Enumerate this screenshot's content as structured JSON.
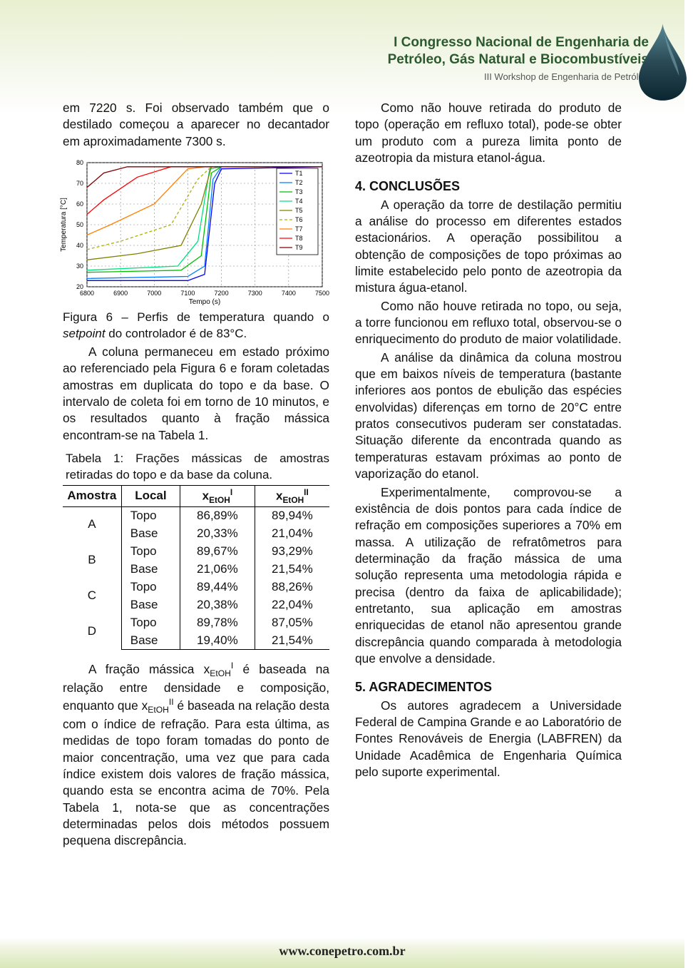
{
  "header": {
    "title_line1": "I Congresso Nacional de Engenharia de",
    "title_line2": "Petróleo, Gás Natural e Biocombustíveis",
    "subtitle": "III Workshop de Engenharia de Petróleo"
  },
  "left": {
    "p1": "em 7220 s. Foi observado também que o destilado começou a aparecer no decantador em aproximadamente 7300 s.",
    "fig_caption_a": "Figura 6 – Perfis de temperatura quando o ",
    "fig_caption_b": "setpoint",
    "fig_caption_c": " do controlador é de 83°C.",
    "p2": "A coluna permaneceu em estado próximo ao referenciado pela Figura 6 e foram coletadas amostras em duplicata do topo e da base. O intervalo de coleta foi em torno de 10 minutos, e os resultados quanto à fração mássica encontram-se na Tabela 1.",
    "table_title": "Tabela 1: Frações mássicas de amostras retiradas do topo e da base da coluna.",
    "p3a": "A fração mássica x",
    "p3b": " é baseada na relação entre densidade e composição, enquanto que x",
    "p3c": " é baseada na relação desta com o índice de refração. Para esta última, as medidas de topo foram tomadas do ponto de maior concentração, uma vez que para cada índice existem dois valores de fração mássica, quando esta se encontra acima de 70%. Pela Tabela 1, nota-se que as concentrações determinadas pelos dois métodos possuem pequena discrepância."
  },
  "right": {
    "p1": "Como não houve retirada do produto de topo (operação em refluxo total), pode-se obter um produto com a pureza limita ponto de azeotropia da mistura etanol-água.",
    "h1": "4. CONCLUSÕES",
    "p2": "A operação da torre de destilação permitiu a análise do processo em diferentes estados estacionários. A operação possibilitou a obtenção de composições de topo próximas ao limite estabelecido pelo ponto de azeotropia da mistura água-etanol.",
    "p3": "Como não houve retirada no topo, ou seja, a torre funcionou em refluxo total, observou-se o enriquecimento do produto de maior volatilidade.",
    "p4": "A análise da dinâmica da coluna mostrou que em baixos níveis de temperatura (bastante inferiores aos pontos de ebulição das espécies envolvidas) diferenças em torno de 20°C entre pratos consecutivos puderam ser constatadas. Situação diferente da encontrada quando as temperaturas estavam próximas ao ponto de vaporização do etanol.",
    "p5": "Experimentalmente, comprovou-se a existência de dois pontos para cada índice de refração em composições superiores a 70% em massa. A utilização de refratômetros para determinação da fração mássica de uma solução representa uma metodologia rápida e precisa (dentro da faixa de aplicabilidade); entretanto, sua aplicação em amostras enriquecidas de etanol não apresentou grande discrepância quando comparada à metodologia que envolve a densidade.",
    "h2": "5. AGRADECIMENTOS",
    "p6": "Os autores agradecem a Universidade Federal de Campina Grande e ao Laboratório de Fontes Renováveis de Energia (LABFREN) da Unidade Acadêmica de Engenharia Química pelo suporte experimental."
  },
  "table": {
    "headers": [
      "Amostra",
      "Local",
      "xEtOH_I",
      "xEtOH_II"
    ],
    "rows": [
      {
        "amostra": "A",
        "local": "Topo",
        "v1": "86,89%",
        "v2": "89,94%"
      },
      {
        "amostra": "",
        "local": "Base",
        "v1": "20,33%",
        "v2": "21,04%"
      },
      {
        "amostra": "B",
        "local": "Topo",
        "v1": "89,67%",
        "v2": "93,29%"
      },
      {
        "amostra": "",
        "local": "Base",
        "v1": "21,06%",
        "v2": "21,54%"
      },
      {
        "amostra": "C",
        "local": "Topo",
        "v1": "89,44%",
        "v2": "88,26%"
      },
      {
        "amostra": "",
        "local": "Base",
        "v1": "20,38%",
        "v2": "22,04%"
      },
      {
        "amostra": "D",
        "local": "Topo",
        "v1": "89,78%",
        "v2": "87,05%"
      },
      {
        "amostra": "",
        "local": "Base",
        "v1": "19,40%",
        "v2": "21,54%"
      }
    ]
  },
  "chart": {
    "type": "line",
    "xlabel": "Tempo (s)",
    "ylabel": "Temperatura [°C]",
    "xlim": [
      6800,
      7500
    ],
    "ylim": [
      20,
      80
    ],
    "xticks": [
      6800,
      6900,
      7000,
      7100,
      7200,
      7300,
      7400,
      7500
    ],
    "yticks": [
      20,
      30,
      40,
      50,
      60,
      70,
      80
    ],
    "legend": [
      "T1",
      "T2",
      "T3",
      "T4",
      "T5",
      "T6",
      "T7",
      "T8",
      "T9"
    ],
    "colors": [
      "#0000ff",
      "#0080ff",
      "#00c000",
      "#00e080",
      "#808000",
      "#b0b000",
      "#ff8000",
      "#ff0000",
      "#800000"
    ],
    "dash": [
      "",
      "",
      "",
      "",
      "",
      "4,3",
      "",
      "",
      ""
    ],
    "background_color": "#ffffff",
    "grid_color": "#808080",
    "grid_dash": "2,3",
    "series": [
      [
        [
          6800,
          23
        ],
        [
          7100,
          23
        ],
        [
          7150,
          26
        ],
        [
          7180,
          70
        ],
        [
          7200,
          77
        ],
        [
          7500,
          78
        ]
      ],
      [
        [
          6800,
          24
        ],
        [
          7100,
          25
        ],
        [
          7150,
          30
        ],
        [
          7175,
          72
        ],
        [
          7200,
          78
        ],
        [
          7500,
          78
        ]
      ],
      [
        [
          6800,
          27
        ],
        [
          7080,
          28
        ],
        [
          7140,
          35
        ],
        [
          7170,
          75
        ],
        [
          7200,
          78
        ],
        [
          7500,
          78
        ]
      ],
      [
        [
          6800,
          28
        ],
        [
          7070,
          30
        ],
        [
          7130,
          42
        ],
        [
          7165,
          77
        ],
        [
          7200,
          78
        ],
        [
          7500,
          78
        ]
      ],
      [
        [
          6800,
          33
        ],
        [
          6950,
          36
        ],
        [
          7080,
          40
        ],
        [
          7140,
          60
        ],
        [
          7170,
          78
        ],
        [
          7500,
          78
        ]
      ],
      [
        [
          6800,
          38
        ],
        [
          6900,
          42
        ],
        [
          7050,
          50
        ],
        [
          7130,
          72
        ],
        [
          7170,
          78
        ],
        [
          7500,
          78
        ]
      ],
      [
        [
          6800,
          45
        ],
        [
          6870,
          50
        ],
        [
          7000,
          60
        ],
        [
          7100,
          77
        ],
        [
          7150,
          78
        ],
        [
          7500,
          78
        ]
      ],
      [
        [
          6800,
          55
        ],
        [
          6850,
          62
        ],
        [
          6950,
          73
        ],
        [
          7050,
          78
        ],
        [
          7500,
          78
        ]
      ],
      [
        [
          6800,
          68
        ],
        [
          6850,
          75
        ],
        [
          6920,
          78
        ],
        [
          7500,
          78
        ]
      ]
    ],
    "label_fontsize": 10,
    "tick_fontsize": 9
  },
  "footer": {
    "url": "www.conepetro.com.br"
  },
  "colors": {
    "header_text": "#2b5a2e",
    "drop_gradient_top": "#4a7a85",
    "drop_gradient_bottom": "#0a2530"
  }
}
